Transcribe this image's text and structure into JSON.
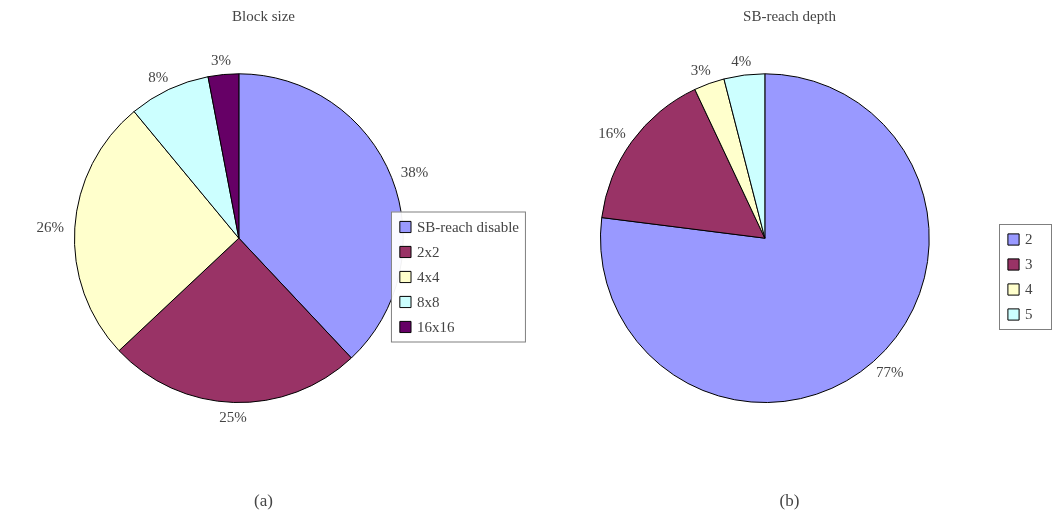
{
  "chart_data": [
    {
      "type": "pie",
      "title": "Block size",
      "categories": [
        "SB-reach disable",
        "2x2",
        "4x4",
        "8x8",
        "16x16"
      ],
      "values": [
        38,
        25,
        26,
        8,
        3
      ],
      "colors": [
        "#9999ff",
        "#993366",
        "#ffffcc",
        "#ccffff",
        "#660066"
      ],
      "value_labels": [
        "38%",
        "25%",
        "26%",
        "8%",
        "3%"
      ],
      "legend": "right",
      "annotations": [
        "(a)"
      ]
    },
    {
      "type": "pie",
      "title": "SB-reach depth",
      "categories": [
        "2",
        "3",
        "4",
        "5"
      ],
      "values": [
        77,
        16,
        3,
        4
      ],
      "colors": [
        "#9999ff",
        "#993366",
        "#ffffcc",
        "#ccffff"
      ],
      "value_labels": [
        "77%",
        "16%",
        "3%",
        "4%"
      ],
      "legend": "right",
      "annotations": [
        "(b)"
      ]
    }
  ]
}
